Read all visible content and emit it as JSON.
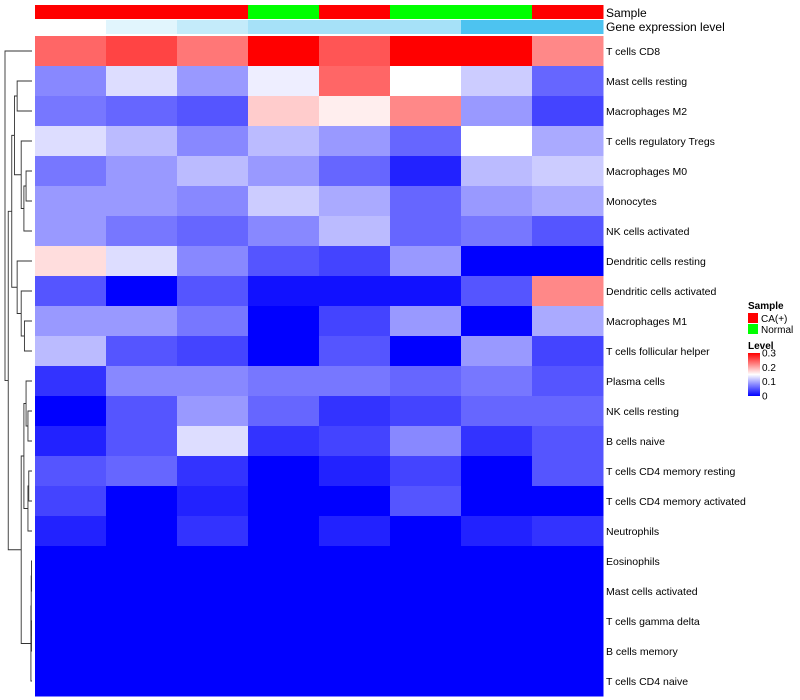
{
  "chart_data": {
    "type": "heatmap",
    "annotations": {
      "sample_label": "Sample",
      "expression_label": "Gene expression level",
      "sample_groups": [
        "CA(+)",
        "CA(+)",
        "CA(+)",
        "Normal",
        "CA(+)",
        "Normal",
        "Normal",
        "CA(+)"
      ],
      "expression_levels": [
        0.0,
        0.05,
        0.1,
        0.15,
        0.15,
        0.15,
        0.3,
        0.3
      ]
    },
    "rows": [
      "T cells CD8",
      "Mast cells resting",
      "Macrophages M2",
      "T cells regulatory  Tregs",
      "Macrophages M0",
      "Monocytes",
      "NK cells activated",
      "Dendritic cells resting",
      "Dendritic cells activated",
      "Macrophages M1",
      "T cells follicular helper",
      "Plasma cells",
      "NK cells resting",
      "B cells naive",
      "T cells CD4 memory resting",
      "T cells CD4 memory activated",
      "Neutrophils",
      "Eosinophils",
      "Mast cells activated",
      "T cells gamma delta",
      "B cells memory",
      "T cells CD4 naive"
    ],
    "values": [
      [
        0.24,
        0.26,
        0.23,
        0.3,
        0.25,
        0.3,
        0.3,
        0.22
      ],
      [
        0.08,
        0.13,
        0.09,
        0.14,
        0.24,
        0.15,
        0.12,
        0.06
      ],
      [
        0.07,
        0.06,
        0.05,
        0.18,
        0.16,
        0.22,
        0.09,
        0.04
      ],
      [
        0.13,
        0.11,
        0.08,
        0.11,
        0.09,
        0.06,
        0.15,
        0.1
      ],
      [
        0.07,
        0.09,
        0.11,
        0.09,
        0.06,
        0.02,
        0.11,
        0.12
      ],
      [
        0.09,
        0.09,
        0.08,
        0.12,
        0.1,
        0.06,
        0.09,
        0.1
      ],
      [
        0.09,
        0.07,
        0.06,
        0.08,
        0.11,
        0.06,
        0.07,
        0.05
      ],
      [
        0.17,
        0.13,
        0.08,
        0.05,
        0.04,
        0.09,
        0.0,
        0.0
      ],
      [
        0.05,
        0.0,
        0.05,
        0.01,
        0.01,
        0.01,
        0.05,
        0.22
      ],
      [
        0.09,
        0.09,
        0.07,
        0.0,
        0.04,
        0.09,
        0.0,
        0.1
      ],
      [
        0.11,
        0.05,
        0.04,
        0.0,
        0.05,
        0.0,
        0.09,
        0.04
      ],
      [
        0.03,
        0.08,
        0.08,
        0.07,
        0.07,
        0.06,
        0.07,
        0.05
      ],
      [
        0.0,
        0.05,
        0.09,
        0.06,
        0.03,
        0.04,
        0.06,
        0.06
      ],
      [
        0.02,
        0.05,
        0.13,
        0.03,
        0.04,
        0.08,
        0.03,
        0.05
      ],
      [
        0.05,
        0.06,
        0.03,
        0.0,
        0.02,
        0.04,
        0.0,
        0.05
      ],
      [
        0.04,
        0.0,
        0.02,
        0.0,
        0.0,
        0.05,
        0.0,
        0.0
      ],
      [
        0.02,
        0.0,
        0.03,
        0.0,
        0.02,
        0.0,
        0.02,
        0.03
      ],
      [
        0.0,
        0.0,
        0.0,
        0.0,
        0.0,
        0.0,
        0.0,
        0.0
      ],
      [
        0.0,
        0.0,
        0.0,
        0.0,
        0.0,
        0.0,
        0.0,
        0.0
      ],
      [
        0.0,
        0.0,
        0.0,
        0.0,
        0.0,
        0.0,
        0.0,
        0.0
      ],
      [
        0.0,
        0.0,
        0.0,
        0.0,
        0.0,
        0.0,
        0.0,
        0.0
      ],
      [
        0.0,
        0.0,
        0.0,
        0.0,
        0.0,
        0.0,
        0.0,
        0.0
      ]
    ],
    "color_scale": {
      "min": 0,
      "max": 0.3,
      "low_color": "#0000ff",
      "mid_color": "#ffffff",
      "high_color": "#ff0000"
    },
    "sample_colors": {
      "CA(+)": "#ff0000",
      "Normal": "#00ff00"
    },
    "expression_color_scale": {
      "low_color": "#ffffff",
      "high_color": "#4dc3f0"
    },
    "legend": {
      "sample_title": "Sample",
      "sample_entries": [
        "CA(+)",
        "Normal"
      ],
      "level_title": "Level",
      "level_ticks": [
        {
          "value": 0.3,
          "label": "0.3"
        },
        {
          "value": 0.2,
          "label": "0.2"
        },
        {
          "value": 0.1,
          "label": "0.1"
        },
        {
          "value": 0.0,
          "label": "0"
        }
      ],
      "position": "right"
    },
    "row_dendrogram": true
  }
}
